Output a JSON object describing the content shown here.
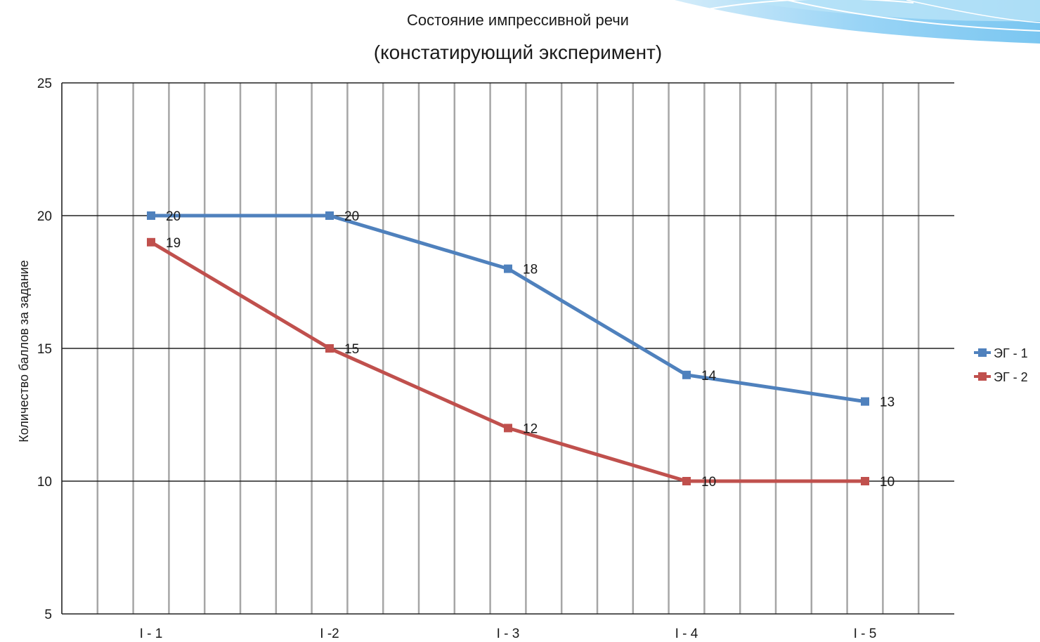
{
  "chart_data": {
    "type": "line",
    "title": "Состояние импрессивной речи",
    "subtitle": "(констатирующий эксперимент)",
    "xlabel": "",
    "ylabel": "Количество баллов за задание",
    "categories": [
      "I - 1",
      "I -2",
      "I - 3",
      "I - 4",
      "I - 5"
    ],
    "ylim": [
      5,
      25
    ],
    "yticks": [
      5,
      10,
      15,
      20,
      25
    ],
    "grid": true,
    "legend_position": "right",
    "series": [
      {
        "name": "ЭГ - 1",
        "values": [
          20,
          20,
          18,
          14,
          13
        ],
        "color": "#4f81bd"
      },
      {
        "name": "ЭГ - 2",
        "values": [
          19,
          15,
          12,
          10,
          10
        ],
        "color": "#c0504d"
      }
    ]
  },
  "decoration": {
    "wave_color": "#7ec8f2"
  }
}
